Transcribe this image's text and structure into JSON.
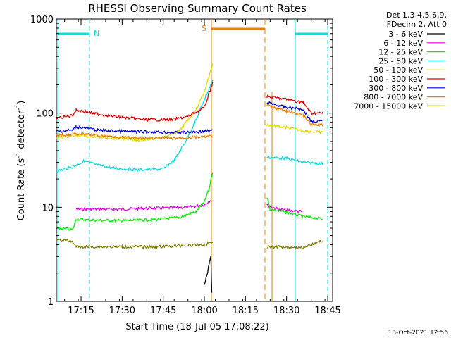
{
  "chart_data": {
    "type": "line",
    "title": "RHESSI Observing Summary Count Rates",
    "xlabel": "Start Time (18-Jul-05 17:08:22)",
    "ylabel": "Count Rate (s",
    "ylabel_sup1": "-1",
    "ylabel_mid": " detector",
    "ylabel_sup2": "-1",
    "ylabel_end": ")",
    "y_scale": "log",
    "ylim": [
      1,
      1000
    ],
    "xlim_minutes": [
      17.1,
      18.78
    ],
    "x_ticks": [
      {
        "label": "17:15",
        "t": 17.25
      },
      {
        "label": "17:30",
        "t": 17.5
      },
      {
        "label": "17:45",
        "t": 17.75
      },
      {
        "label": "18:00",
        "t": 18.0
      },
      {
        "label": "18:15",
        "t": 18.25
      },
      {
        "label": "18:30",
        "t": 18.5
      },
      {
        "label": "18:45",
        "t": 18.75
      }
    ],
    "y_ticks": [
      {
        "label": "1",
        "v": 1
      },
      {
        "label": "10",
        "v": 10
      },
      {
        "label": "100",
        "v": 100
      },
      {
        "label": "1000",
        "v": 1000
      }
    ],
    "legend_header": [
      "Det 1,3,4,5,6,9,",
      "FDecim 2, Att 0"
    ],
    "legend_position": "top-right",
    "series": [
      {
        "name": "3 - 6 keV",
        "color": "#000000",
        "points": [
          [
            18.0,
            1.5
          ],
          [
            18.02,
            2.0
          ],
          [
            18.03,
            2.6
          ],
          [
            18.04,
            3.0
          ],
          [
            18.045,
            1.2
          ]
        ]
      },
      {
        "name": "6 - 12 keV",
        "color": "#e000e0",
        "points": [
          [
            17.22,
            9.5
          ],
          [
            17.3,
            9.6
          ],
          [
            17.45,
            9.5
          ],
          [
            17.6,
            9.7
          ],
          [
            17.75,
            9.8
          ],
          [
            17.9,
            10.0
          ],
          [
            18.0,
            10.6
          ],
          [
            18.04,
            12.0
          ],
          [
            null,
            null
          ],
          [
            18.38,
            10.5
          ],
          [
            18.45,
            9.5
          ],
          [
            18.52,
            9.2
          ],
          [
            18.6,
            9.0
          ]
        ]
      },
      {
        "name": "12 - 25 keV",
        "color": "#00f000",
        "points": [
          [
            17.1,
            6.0
          ],
          [
            17.2,
            5.8
          ],
          [
            17.22,
            7.5
          ],
          [
            17.3,
            7.3
          ],
          [
            17.5,
            7.2
          ],
          [
            17.7,
            7.4
          ],
          [
            17.85,
            7.8
          ],
          [
            17.95,
            9.0
          ],
          [
            18.0,
            11.5
          ],
          [
            18.03,
            16.0
          ],
          [
            18.05,
            24.0
          ],
          [
            null,
            null
          ],
          [
            18.38,
            13.0
          ],
          [
            18.4,
            9.5
          ],
          [
            18.5,
            8.8
          ],
          [
            18.6,
            8.0
          ],
          [
            18.72,
            7.5
          ]
        ]
      },
      {
        "name": "25 - 50 keV",
        "color": "#00e0e0",
        "points": [
          [
            17.1,
            24.0
          ],
          [
            17.2,
            27.0
          ],
          [
            17.27,
            31.0
          ],
          [
            17.35,
            28.0
          ],
          [
            17.45,
            26.0
          ],
          [
            17.6,
            25.0
          ],
          [
            17.75,
            25.5
          ],
          [
            17.82,
            32.0
          ],
          [
            17.88,
            48.0
          ],
          [
            17.95,
            85.0
          ],
          [
            18.0,
            140.0
          ],
          [
            18.05,
            220.0
          ],
          [
            null,
            null
          ],
          [
            18.38,
            34.0
          ],
          [
            18.5,
            33.0
          ],
          [
            18.6,
            30.0
          ],
          [
            18.72,
            29.0
          ]
        ]
      },
      {
        "name": "50 - 100 keV",
        "color": "#dddd00",
        "points": [
          [
            17.1,
            55.0
          ],
          [
            17.25,
            58.0
          ],
          [
            17.4,
            55.0
          ],
          [
            17.6,
            52.0
          ],
          [
            17.75,
            55.0
          ],
          [
            17.85,
            65.0
          ],
          [
            17.95,
            110.0
          ],
          [
            18.0,
            170.0
          ],
          [
            18.05,
            330.0
          ],
          [
            null,
            null
          ],
          [
            18.38,
            75.0
          ],
          [
            18.5,
            70.0
          ],
          [
            18.6,
            65.0
          ],
          [
            18.72,
            62.0
          ]
        ]
      },
      {
        "name": "100 - 300 keV",
        "color": "#e00000",
        "points": [
          [
            17.1,
            88.0
          ],
          [
            17.2,
            95.0
          ],
          [
            17.22,
            108.0
          ],
          [
            17.35,
            98.0
          ],
          [
            17.5,
            90.0
          ],
          [
            17.65,
            85.0
          ],
          [
            17.8,
            85.0
          ],
          [
            17.9,
            92.0
          ],
          [
            18.0,
            115.0
          ],
          [
            18.05,
            210.0
          ],
          [
            null,
            null
          ],
          [
            18.38,
            150.0
          ],
          [
            18.5,
            140.0
          ],
          [
            18.6,
            130.0
          ],
          [
            18.65,
            100.0
          ],
          [
            18.72,
            100.0
          ]
        ]
      },
      {
        "name": "300 - 800 keV",
        "color": "#0000e0",
        "points": [
          [
            17.1,
            64.0
          ],
          [
            17.2,
            66.0
          ],
          [
            17.22,
            72.0
          ],
          [
            17.35,
            66.0
          ],
          [
            17.5,
            64.0
          ],
          [
            17.7,
            63.0
          ],
          [
            17.85,
            62.0
          ],
          [
            18.0,
            64.0
          ],
          [
            18.05,
            65.0
          ],
          [
            null,
            null
          ],
          [
            18.38,
            130.0
          ],
          [
            18.5,
            115.0
          ],
          [
            18.6,
            110.0
          ],
          [
            18.65,
            82.0
          ],
          [
            18.72,
            82.0
          ]
        ]
      },
      {
        "name": "800 - 7000 keV",
        "color": "#f08000",
        "points": [
          [
            17.1,
            58.0
          ],
          [
            17.25,
            60.0
          ],
          [
            17.4,
            57.0
          ],
          [
            17.6,
            54.0
          ],
          [
            17.8,
            54.0
          ],
          [
            18.0,
            56.0
          ],
          [
            18.05,
            57.0
          ],
          [
            null,
            null
          ],
          [
            18.38,
            120.0
          ],
          [
            18.5,
            105.0
          ],
          [
            18.6,
            95.0
          ],
          [
            18.65,
            75.0
          ],
          [
            18.72,
            75.0
          ]
        ]
      },
      {
        "name": "7000 - 15000 keV",
        "color": "#808000",
        "points": [
          [
            17.1,
            4.6
          ],
          [
            17.2,
            4.3
          ],
          [
            17.22,
            3.8
          ],
          [
            17.35,
            3.8
          ],
          [
            17.5,
            3.8
          ],
          [
            17.7,
            3.8
          ],
          [
            17.85,
            3.9
          ],
          [
            18.0,
            4.0
          ],
          [
            18.05,
            4.3
          ],
          [
            null,
            null
          ],
          [
            18.38,
            3.8
          ],
          [
            18.5,
            3.8
          ],
          [
            18.6,
            3.7
          ],
          [
            18.7,
            4.3
          ],
          [
            18.72,
            4.3
          ]
        ]
      }
    ],
    "annotations": [
      {
        "label": "N",
        "color": "#00e0e0"
      },
      {
        "label": "S",
        "color": "#f08000"
      }
    ],
    "timestamp": "18-Oct-2021 12:56"
  }
}
